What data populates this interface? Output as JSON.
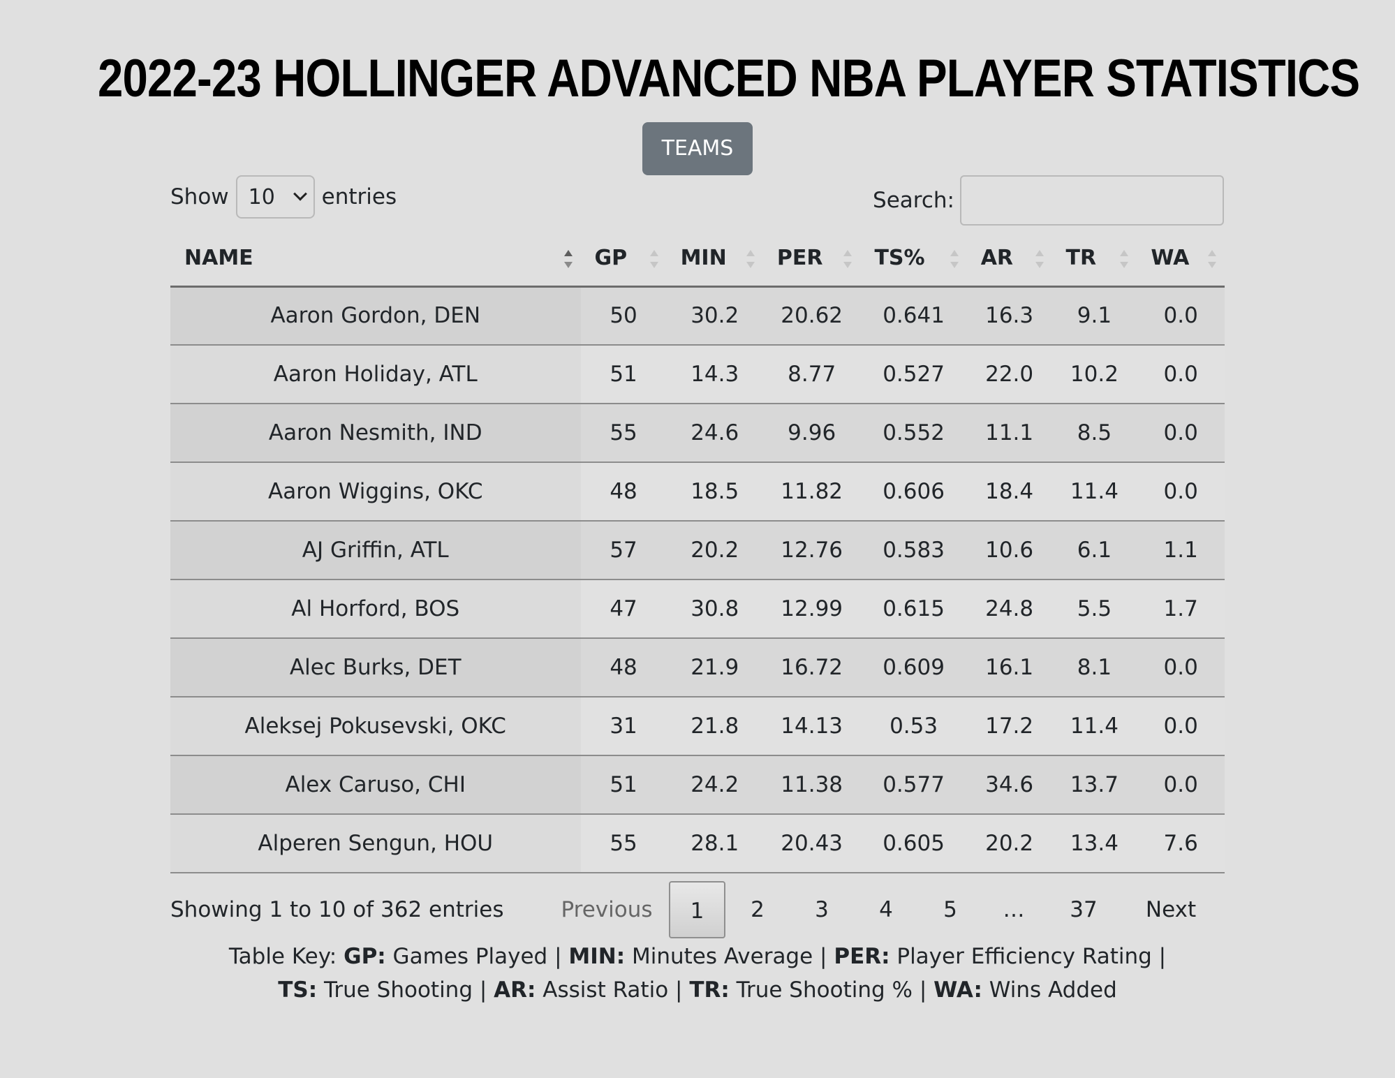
{
  "page": {
    "title": "2022-23 HOLLINGER ADVANCED NBA PLAYER STATISTICS",
    "teams_button": "TEAMS"
  },
  "controls": {
    "show_label": "Show",
    "entries_label": "entries",
    "page_length": "10",
    "search_label": "Search:",
    "search_value": ""
  },
  "table": {
    "columns": [
      "NAME",
      "GP",
      "MIN",
      "PER",
      "TS%",
      "AR",
      "TR",
      "WA"
    ],
    "rows": [
      [
        "Aaron Gordon, DEN",
        "50",
        "30.2",
        "20.62",
        "0.641",
        "16.3",
        "9.1",
        "0.0"
      ],
      [
        "Aaron Holiday, ATL",
        "51",
        "14.3",
        "8.77",
        "0.527",
        "22.0",
        "10.2",
        "0.0"
      ],
      [
        "Aaron Nesmith, IND",
        "55",
        "24.6",
        "9.96",
        "0.552",
        "11.1",
        "8.5",
        "0.0"
      ],
      [
        "Aaron Wiggins, OKC",
        "48",
        "18.5",
        "11.82",
        "0.606",
        "18.4",
        "11.4",
        "0.0"
      ],
      [
        "AJ Griffin, ATL",
        "57",
        "20.2",
        "12.76",
        "0.583",
        "10.6",
        "6.1",
        "1.1"
      ],
      [
        "Al Horford, BOS",
        "47",
        "30.8",
        "12.99",
        "0.615",
        "24.8",
        "5.5",
        "1.7"
      ],
      [
        "Alec Burks, DET",
        "48",
        "21.9",
        "16.72",
        "0.609",
        "16.1",
        "8.1",
        "0.0"
      ],
      [
        "Aleksej Pokusevski, OKC",
        "31",
        "21.8",
        "14.13",
        "0.53",
        "17.2",
        "11.4",
        "0.0"
      ],
      [
        "Alex Caruso, CHI",
        "51",
        "24.2",
        "11.38",
        "0.577",
        "34.6",
        "13.7",
        "0.0"
      ],
      [
        "Alperen Sengun, HOU",
        "55",
        "28.1",
        "20.43",
        "0.605",
        "20.2",
        "13.4",
        "7.6"
      ]
    ]
  },
  "footer": {
    "info": "Showing 1 to 10 of 362 entries",
    "pagination": {
      "previous": "Previous",
      "pages": [
        "1",
        "2",
        "3",
        "4",
        "5",
        "…",
        "37"
      ],
      "current": "1",
      "next": "Next"
    }
  },
  "legend": {
    "prefix": "Table Key:",
    "items": [
      {
        "abbr": "GP:",
        "desc": "Games Played"
      },
      {
        "abbr": "MIN:",
        "desc": "Minutes Average"
      },
      {
        "abbr": "PER:",
        "desc": "Player Efficiency Rating"
      },
      {
        "abbr": "TS:",
        "desc": "True Shooting"
      },
      {
        "abbr": "AR:",
        "desc": "Assist Ratio"
      },
      {
        "abbr": "TR:",
        "desc": "True Shooting %"
      },
      {
        "abbr": "WA:",
        "desc": "Wins Added"
      }
    ]
  }
}
